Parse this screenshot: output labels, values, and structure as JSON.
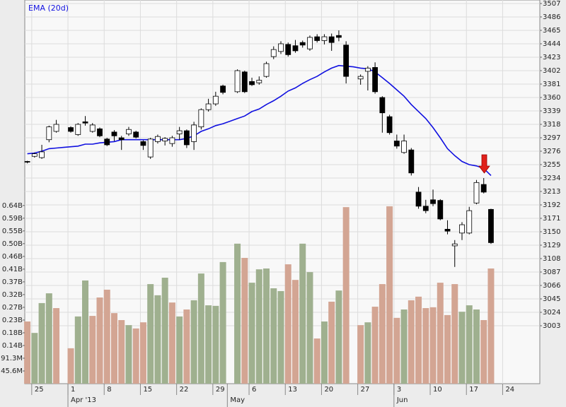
{
  "chart_data": {
    "type": "candlestick",
    "categories": [
      null,
      "25",
      null,
      null,
      null,
      null,
      "1",
      null,
      null,
      null,
      null,
      "8",
      null,
      null,
      null,
      null,
      "15",
      null,
      null,
      null,
      null,
      "22",
      null,
      null,
      null,
      null,
      "29",
      null,
      null,
      null,
      null,
      "6",
      null,
      null,
      null,
      null,
      "13",
      null,
      null,
      null,
      null,
      "20",
      null,
      null,
      null,
      null,
      "27",
      null,
      null,
      null,
      null,
      "3",
      null,
      null,
      null,
      null,
      "10",
      null,
      null,
      null,
      null,
      "17",
      null,
      null,
      null,
      null,
      "24",
      null,
      null,
      null,
      null
    ],
    "month_categories": [
      null,
      null,
      null,
      null,
      null,
      null,
      "Apr '13",
      null,
      null,
      null,
      null,
      null,
      null,
      null,
      null,
      null,
      null,
      null,
      null,
      null,
      null,
      null,
      null,
      null,
      null,
      null,
      null,
      null,
      "May",
      null,
      null,
      null,
      null,
      null,
      null,
      null,
      null,
      null,
      null,
      null,
      null,
      null,
      null,
      null,
      null,
      null,
      null,
      null,
      null,
      null,
      null,
      "Jun",
      null,
      null,
      null,
      null,
      null,
      null,
      null,
      null,
      null,
      null,
      null,
      null,
      null,
      null,
      null,
      null,
      null,
      null,
      null
    ],
    "open": [
      3260,
      3268,
      3266,
      3294,
      3307,
      null,
      3313,
      3302,
      3322,
      3307,
      3311,
      3295,
      3306,
      3297,
      3303,
      3306,
      3291,
      3267,
      3291,
      3292,
      3288,
      3303,
      3308,
      3291,
      3314,
      3341,
      3350,
      3378,
      null,
      3369,
      3400,
      3385,
      3383,
      3393,
      3424,
      3432,
      3443,
      3441,
      3446,
      3436,
      3455,
      3449,
      3455,
      3457,
      3442,
      null,
      3389,
      3401,
      3407,
      3360,
      3330,
      3292,
      3274,
      3278,
      3212,
      3190,
      3200,
      3199,
      3154,
      3128,
      3148,
      3148,
      3195,
      3224,
      3185,
      null,
      null,
      null,
      null,
      null,
      null
    ],
    "high": [
      3261,
      3274,
      3286,
      3316,
      3325,
      null,
      3315,
      3320,
      3331,
      3320,
      3313,
      3297,
      3309,
      3300,
      3314,
      3308,
      3293,
      3297,
      3302,
      3298,
      3300,
      3314,
      3310,
      3322,
      3343,
      3358,
      3369,
      3380,
      null,
      3404,
      3402,
      3391,
      3393,
      3416,
      3440,
      3448,
      3446,
      3450,
      3449,
      3457,
      3459,
      3459,
      3460,
      3465,
      3448,
      null,
      3396,
      3409,
      3415,
      3362,
      3333,
      3302,
      3302,
      3281,
      3220,
      3200,
      3216,
      3201,
      3168,
      3137,
      3165,
      3189,
      3231,
      3234,
      3186,
      null,
      null,
      null,
      null,
      null,
      null
    ],
    "low": [
      3257,
      3266,
      3264,
      3290,
      3305,
      null,
      3305,
      3300,
      3316,
      3305,
      3298,
      3284,
      3292,
      3278,
      3300,
      3296,
      3278,
      3264,
      3288,
      3285,
      3283,
      3294,
      3281,
      3278,
      3310,
      3338,
      3347,
      3365,
      null,
      3367,
      3367,
      3378,
      3380,
      3391,
      3420,
      3428,
      3424,
      3430,
      3438,
      3433,
      3446,
      3443,
      3433,
      3448,
      3382,
      null,
      3380,
      3371,
      3366,
      3305,
      3302,
      3280,
      3272,
      3238,
      3186,
      3179,
      3190,
      3168,
      3146,
      3095,
      3137,
      3146,
      3193,
      3210,
      3131,
      null,
      null,
      null,
      null,
      null,
      null
    ],
    "close": [
      3259,
      3272,
      3275,
      3314,
      3318,
      null,
      3307,
      3318,
      3320,
      3317,
      3300,
      3286,
      3300,
      3294,
      3310,
      3298,
      3285,
      3295,
      3299,
      3296,
      3297,
      3308,
      3286,
      3317,
      3341,
      3350,
      3362,
      3368,
      null,
      3402,
      3369,
      3380,
      3387,
      3413,
      3435,
      3444,
      3427,
      3433,
      3442,
      3454,
      3449,
      3455,
      3446,
      3454,
      3393,
      null,
      3393,
      3406,
      3369,
      3336,
      3305,
      3284,
      3292,
      3242,
      3190,
      3183,
      3194,
      3170,
      3151,
      3131,
      3161,
      3183,
      3227,
      3212,
      3133,
      null,
      null,
      null,
      null,
      null,
      null
    ],
    "up_color": "#ffffff",
    "down_color": "#000000",
    "ema": {
      "name": "EMA (20d)",
      "color": "#1010e0",
      "values": [
        3272,
        3273,
        3276,
        3280,
        3281,
        3282,
        3283,
        3284,
        3287,
        3287,
        3289,
        3290,
        3291,
        3294,
        3294,
        3294,
        3294,
        3294,
        3294,
        3294,
        3294,
        3294,
        3296,
        3300,
        3307,
        3311,
        3316,
        3319,
        3323,
        3327,
        3331,
        3338,
        3342,
        3349,
        3355,
        3362,
        3370,
        3375,
        3382,
        3388,
        3393,
        3400,
        3406,
        3410,
        3409,
        3408,
        3406,
        3405,
        3400,
        3391,
        3382,
        3372,
        3362,
        3349,
        3338,
        3327,
        3313,
        3297,
        3280,
        3269,
        3260,
        3255,
        3253,
        3249,
        3238,
        null,
        null,
        null,
        null,
        null,
        null
      ]
    },
    "volume": {
      "values": [
        223,
        182,
        289,
        324,
        271,
        null,
        127,
        241,
        370,
        243,
        309,
        337,
        253,
        228,
        210,
        198,
        220,
        357,
        317,
        380,
        291,
        241,
        266,
        299,
        395,
        281,
        279,
        436,
        null,
        502,
        451,
        362,
        410,
        413,
        342,
        332,
        428,
        372,
        502,
        400,
        162,
        223,
        294,
        334,
        633,
        null,
        210,
        220,
        276,
        357,
        636,
        236,
        266,
        299,
        312,
        271,
        274,
        362,
        246,
        357,
        258,
        281,
        266,
        228,
        413,
        null,
        null,
        null,
        null,
        null,
        null
      ],
      "colors": [
        "#d3a593",
        "#9fb08f",
        "#9fb08f",
        "#9fb08f",
        "#d3a593",
        null,
        "#d3a593",
        "#9fb08f",
        "#9fb08f",
        "#d3a593",
        "#d3a593",
        "#d3a593",
        "#d3a593",
        "#d3a593",
        "#9fb08f",
        "#d3a593",
        "#d3a593",
        "#9fb08f",
        "#9fb08f",
        "#9fb08f",
        "#d3a593",
        "#9fb08f",
        "#d3a593",
        "#9fb08f",
        "#9fb08f",
        "#9fb08f",
        "#9fb08f",
        "#9fb08f",
        null,
        "#9fb08f",
        "#d3a593",
        "#9fb08f",
        "#9fb08f",
        "#9fb08f",
        "#9fb08f",
        "#9fb08f",
        "#d3a593",
        "#d3a593",
        "#9fb08f",
        "#9fb08f",
        "#d3a593",
        "#9fb08f",
        "#d3a593",
        "#9fb08f",
        "#d3a593",
        null,
        "#d3a593",
        "#9fb08f",
        "#d3a593",
        "#d3a593",
        "#d3a593",
        "#d3a593",
        "#9fb08f",
        "#d3a593",
        "#d3a593",
        "#d3a593",
        "#d3a593",
        "#d3a593",
        "#d3a593",
        "#d3a593",
        "#9fb08f",
        "#9fb08f",
        "#9fb08f",
        "#d3a593",
        "#d3a593",
        null,
        null,
        null,
        null,
        null,
        null
      ]
    },
    "ylim": [
      2912.4,
      3512.5
    ],
    "yticks": [
      3003,
      3024,
      3045,
      3066,
      3087,
      3108,
      3129,
      3150,
      3171,
      3192,
      3213,
      3234,
      3255,
      3276,
      3297,
      3318,
      3339,
      3360,
      3381,
      3402,
      3423,
      3444,
      3465,
      3486,
      3507
    ],
    "volume_ylim": [
      0,
      1375.6
    ],
    "volume_yticks": [
      {
        "value": 45.6,
        "label": "45.6M"
      },
      {
        "value": 91.3,
        "label": "91.3M"
      },
      {
        "value": 136.9,
        "label": "0.14B"
      },
      {
        "value": 182.5,
        "label": "0.18B"
      },
      {
        "value": 228.2,
        "label": "0.23B"
      },
      {
        "value": 273.8,
        "label": "0.27B"
      },
      {
        "value": 319.4,
        "label": "0.32B"
      },
      {
        "value": 365.1,
        "label": "0.37B"
      },
      {
        "value": 410.7,
        "label": "0.41B"
      },
      {
        "value": 456.4,
        "label": "0.46B"
      },
      {
        "value": 502,
        "label": "0.50B"
      },
      {
        "value": 547.6,
        "label": "0.55B"
      },
      {
        "value": 593.3,
        "label": "0.59B"
      },
      {
        "value": 638.9,
        "label": "0.64B"
      }
    ],
    "grid": true
  }
}
